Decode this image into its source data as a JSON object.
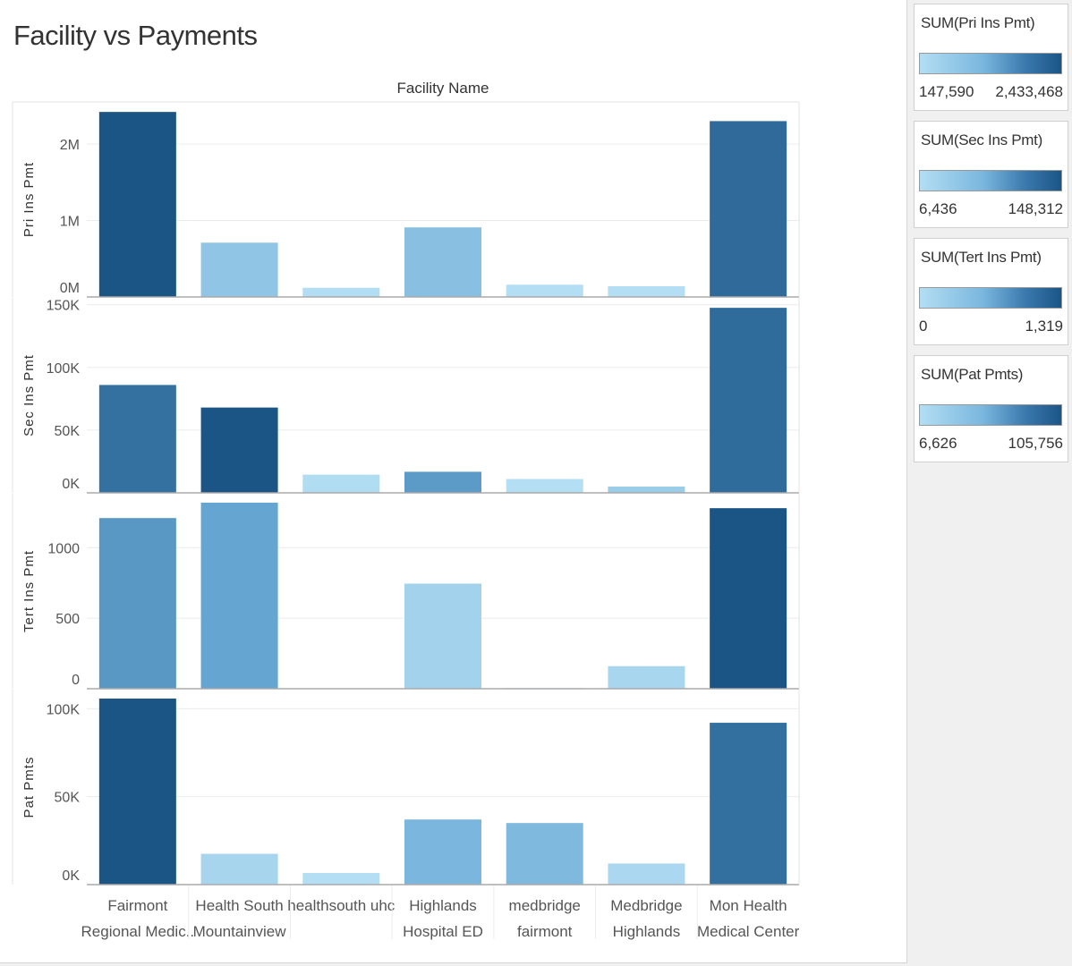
{
  "title": "Facility vs Payments",
  "colors": {
    "light": "#b3def3",
    "mid": "#6aaad6",
    "dark": "#1b5586"
  },
  "chart_data": {
    "type": "bar",
    "column_header": "Facility Name",
    "categories": [
      [
        "Fairmont",
        "Regional Medic.."
      ],
      [
        "Health South",
        "Mountainview"
      ],
      [
        "healthsouth uhc"
      ],
      [
        "Highlands",
        "Hospital ED"
      ],
      [
        "medbridge",
        "fairmont"
      ],
      [
        "Medbridge",
        "Highlands"
      ],
      [
        "Mon Health",
        "Medical Center"
      ]
    ],
    "grid": true,
    "panels": [
      {
        "ylabel": "Pri Ins Pmt",
        "ymin": 0,
        "ymax": 2433468,
        "ticks": [
          0,
          1000000,
          2000000
        ],
        "tick_labels": [
          "0M",
          "1M",
          "2M"
        ],
        "values": [
          2420000,
          710000,
          120000,
          910000,
          160000,
          140000,
          2300000
        ],
        "color_values": [
          2433468,
          700000,
          160000,
          800000,
          147590,
          150000,
          2150000
        ]
      },
      {
        "ylabel": "Sec Ins Pmt",
        "ymin": 0,
        "ymax": 148312,
        "ticks": [
          0,
          50000,
          100000,
          150000
        ],
        "tick_labels": [
          "0K",
          "50K",
          "100K",
          "150K"
        ],
        "values": [
          86000,
          68000,
          14500,
          16800,
          11000,
          5000,
          147500
        ],
        "color_values": [
          125000,
          148312,
          8000,
          90000,
          6436,
          30000,
          130000
        ]
      },
      {
        "ylabel": "Tert Ins Pmt",
        "ymin": 0,
        "ymax": 1319,
        "ticks": [
          0,
          500,
          1000
        ],
        "tick_labels": [
          "0",
          "500",
          "1000"
        ],
        "values": [
          1210,
          1319,
          0,
          745,
          5,
          160,
          1280
        ],
        "color_values": [
          800,
          700,
          0,
          150,
          10,
          100,
          1319
        ]
      },
      {
        "ylabel": "Pat Pmts",
        "ymin": 0,
        "ymax": 105756,
        "ticks": [
          0,
          50000,
          100000
        ],
        "tick_labels": [
          "0K",
          "50K",
          "100K"
        ],
        "values": [
          105756,
          17500,
          6626,
          37000,
          35000,
          12000,
          92000
        ],
        "color_values": [
          105756,
          15000,
          6626,
          45000,
          42000,
          12000,
          90000
        ]
      }
    ]
  },
  "legends": [
    {
      "title": "SUM(Pri Ins Pmt)",
      "min": "147,590",
      "max": "2,433,468"
    },
    {
      "title": "SUM(Sec Ins Pmt)",
      "min": "6,436",
      "max": "148,312"
    },
    {
      "title": "SUM(Tert Ins Pmt)",
      "min": "0",
      "max": "1,319"
    },
    {
      "title": "SUM(Pat Pmts)",
      "min": "6,626",
      "max": "105,756"
    }
  ]
}
